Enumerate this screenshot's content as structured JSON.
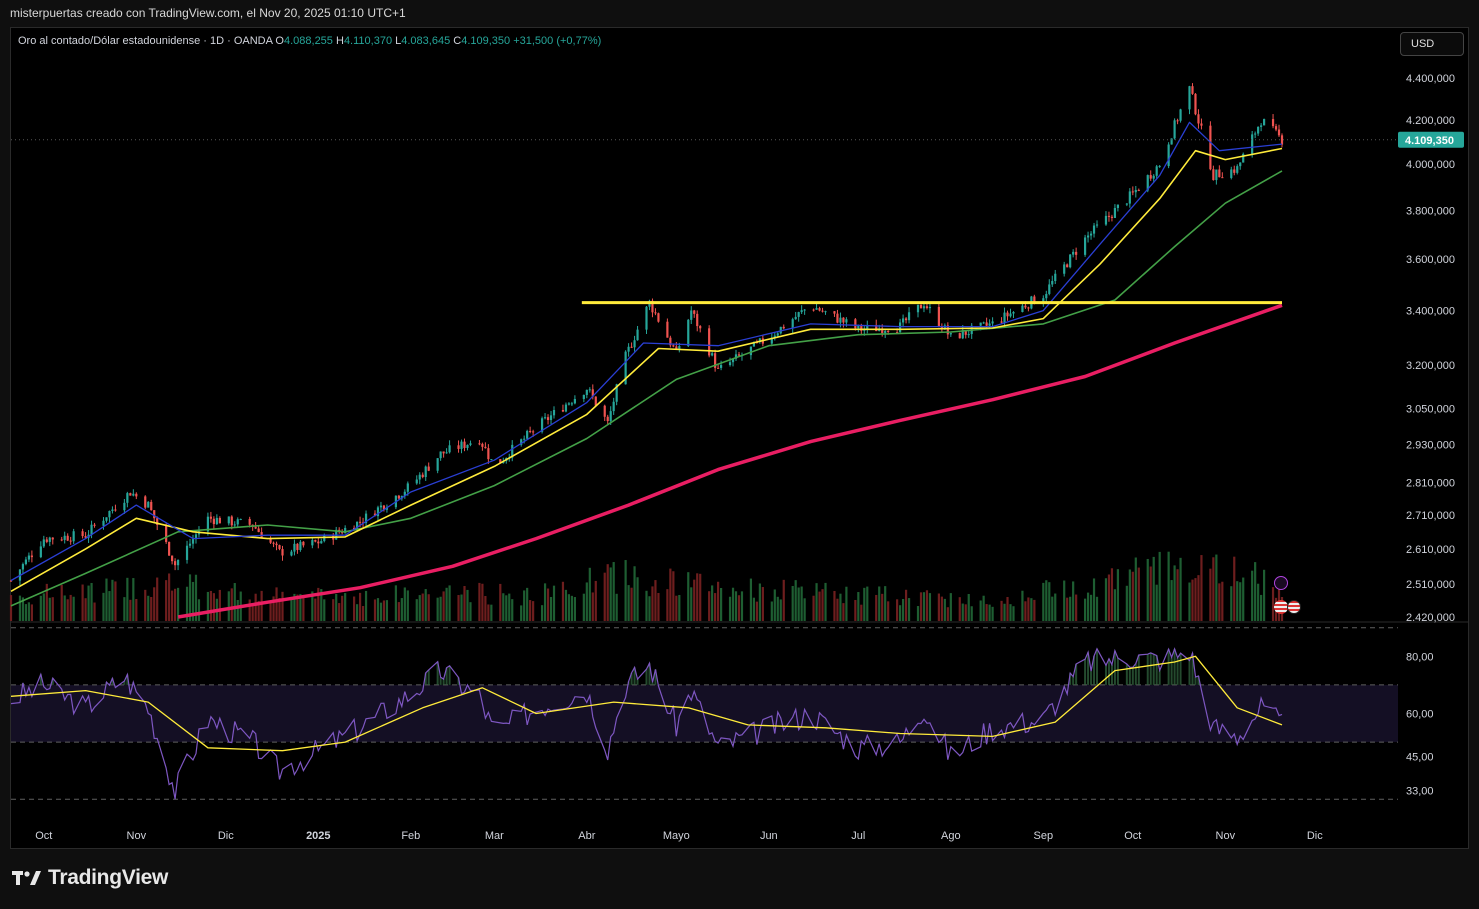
{
  "header": {
    "attribution": "misterpuertas creado con TradingView.com, el Nov 20, 2025 01:10 UTC+1"
  },
  "legend": {
    "symbol": "Oro al contado/Dólar estadounidense · 1D · OANDA",
    "open_label": "O",
    "open": "4.088,255",
    "high_label": "H",
    "high": "4.110,370",
    "low_label": "L",
    "low": "4.083,645",
    "close_label": "C",
    "close": "4.109,350",
    "change": "+31,500 (+0,77%)"
  },
  "currency_button": "USD",
  "brand": {
    "name": "TradingView"
  },
  "colors": {
    "up": "#26a69a",
    "down": "#ef5350",
    "ema_fast": "#2a3fd4",
    "ema_mid": "#ffeb3b",
    "ema_slow": "#43a047",
    "ema_long": "#e91e63",
    "horizontal_level": "#ffeb3b",
    "rsi_line": "#7e57c2",
    "rsi_ma": "#ffeb3b"
  },
  "chart_data": {
    "type": "line",
    "title": "",
    "scale": "log",
    "price_axis_ticks": [
      "4.400,000",
      "4.200,000",
      "4.000,000",
      "3.800,000",
      "3.600,000",
      "3.400,000",
      "3.200,000",
      "3.050,000",
      "2.930,000",
      "2.810,000",
      "2.710,000",
      "2.610,000",
      "2.510,000",
      "2.420,000"
    ],
    "price_axis_values": [
      4400,
      4200,
      4000,
      3800,
      3600,
      3400,
      3200,
      3050,
      2930,
      2810,
      2710,
      2610,
      2510,
      2420
    ],
    "last_price_label": "4.109,350",
    "last_price": 4109.35,
    "ylim": [
      2420,
      4460
    ],
    "horizontal_level": {
      "value": 3430,
      "from": "2025-04-01",
      "to": "2025-11-20"
    },
    "x_ticks": [
      "Oct",
      "Nov",
      "Dic",
      "2025",
      "Feb",
      "Mar",
      "Abr",
      "Mayo",
      "Jun",
      "Jul",
      "Ago",
      "Sep",
      "Oct",
      "Nov",
      "Dic"
    ],
    "x_tick_dates": [
      "2024-10-01",
      "2024-11-01",
      "2024-12-01",
      "2025-01-01",
      "2025-02-01",
      "2025-03-01",
      "2025-04-01",
      "2025-05-01",
      "2025-06-01",
      "2025-07-01",
      "2025-08-01",
      "2025-09-01",
      "2025-10-01",
      "2025-11-01",
      "2025-12-01"
    ],
    "date_range": [
      "2024-09-20",
      "2025-11-20"
    ],
    "price_path": [
      [
        "2024-09-20",
        2520
      ],
      [
        "2024-10-01",
        2640
      ],
      [
        "2024-10-15",
        2650
      ],
      [
        "2024-10-30",
        2780
      ],
      [
        "2024-11-05",
        2740
      ],
      [
        "2024-11-14",
        2565
      ],
      [
        "2024-11-25",
        2700
      ],
      [
        "2024-12-10",
        2680
      ],
      [
        "2024-12-19",
        2600
      ],
      [
        "2025-01-01",
        2630
      ],
      [
        "2025-01-15",
        2690
      ],
      [
        "2025-02-01",
        2800
      ],
      [
        "2025-02-11",
        2900
      ],
      [
        "2025-02-24",
        2950
      ],
      [
        "2025-03-01",
        2860
      ],
      [
        "2025-03-15",
        2985
      ],
      [
        "2025-04-01",
        3120
      ],
      [
        "2025-04-08",
        3000
      ],
      [
        "2025-04-14",
        3230
      ],
      [
        "2025-04-22",
        3430
      ],
      [
        "2025-05-01",
        3240
      ],
      [
        "2025-05-06",
        3400
      ],
      [
        "2025-05-15",
        3180
      ],
      [
        "2025-06-01",
        3300
      ],
      [
        "2025-06-15",
        3420
      ],
      [
        "2025-07-01",
        3330
      ],
      [
        "2025-07-15",
        3340
      ],
      [
        "2025-07-23",
        3430
      ],
      [
        "2025-08-01",
        3300
      ],
      [
        "2025-08-15",
        3350
      ],
      [
        "2025-09-01",
        3460
      ],
      [
        "2025-09-15",
        3680
      ],
      [
        "2025-10-01",
        3870
      ],
      [
        "2025-10-10",
        4000
      ],
      [
        "2025-10-20",
        4350
      ],
      [
        "2025-10-28",
        3950
      ],
      [
        "2025-11-05",
        3980
      ],
      [
        "2025-11-13",
        4200
      ],
      [
        "2025-11-20",
        4109
      ]
    ],
    "ema_fast_path": [
      [
        "2024-09-20",
        2520
      ],
      [
        "2024-10-15",
        2640
      ],
      [
        "2024-11-01",
        2740
      ],
      [
        "2024-11-20",
        2640
      ],
      [
        "2024-12-15",
        2650
      ],
      [
        "2025-01-10",
        2650
      ],
      [
        "2025-02-01",
        2780
      ],
      [
        "2025-03-01",
        2880
      ],
      [
        "2025-04-01",
        3070
      ],
      [
        "2025-04-20",
        3280
      ],
      [
        "2025-05-15",
        3270
      ],
      [
        "2025-06-15",
        3350
      ],
      [
        "2025-07-15",
        3340
      ],
      [
        "2025-08-15",
        3340
      ],
      [
        "2025-09-01",
        3400
      ],
      [
        "2025-09-20",
        3660
      ],
      [
        "2025-10-10",
        3950
      ],
      [
        "2025-10-20",
        4190
      ],
      [
        "2025-10-30",
        4060
      ],
      [
        "2025-11-20",
        4090
      ]
    ],
    "ema_mid_path": [
      [
        "2024-09-20",
        2490
      ],
      [
        "2024-10-15",
        2610
      ],
      [
        "2024-11-01",
        2700
      ],
      [
        "2024-11-20",
        2660
      ],
      [
        "2024-12-15",
        2640
      ],
      [
        "2025-01-10",
        2645
      ],
      [
        "2025-02-01",
        2740
      ],
      [
        "2025-03-01",
        2860
      ],
      [
        "2025-04-01",
        3030
      ],
      [
        "2025-04-25",
        3260
      ],
      [
        "2025-05-15",
        3250
      ],
      [
        "2025-06-15",
        3330
      ],
      [
        "2025-07-15",
        3330
      ],
      [
        "2025-08-15",
        3335
      ],
      [
        "2025-09-01",
        3370
      ],
      [
        "2025-09-20",
        3580
      ],
      [
        "2025-10-10",
        3850
      ],
      [
        "2025-10-22",
        4060
      ],
      [
        "2025-11-01",
        4020
      ],
      [
        "2025-11-20",
        4070
      ]
    ],
    "ema_slow_path": [
      [
        "2024-09-20",
        2450
      ],
      [
        "2024-10-15",
        2540
      ],
      [
        "2024-11-15",
        2660
      ],
      [
        "2024-12-15",
        2680
      ],
      [
        "2025-01-10",
        2660
      ],
      [
        "2025-02-01",
        2700
      ],
      [
        "2025-03-01",
        2800
      ],
      [
        "2025-04-01",
        2950
      ],
      [
        "2025-05-01",
        3150
      ],
      [
        "2025-06-01",
        3270
      ],
      [
        "2025-07-01",
        3310
      ],
      [
        "2025-08-01",
        3320
      ],
      [
        "2025-09-01",
        3350
      ],
      [
        "2025-09-25",
        3440
      ],
      [
        "2025-10-15",
        3650
      ],
      [
        "2025-11-01",
        3830
      ],
      [
        "2025-11-20",
        3970
      ]
    ],
    "ema_long_path": [
      [
        "2024-11-15",
        2420
      ],
      [
        "2024-12-15",
        2460
      ],
      [
        "2025-01-15",
        2500
      ],
      [
        "2025-02-15",
        2560
      ],
      [
        "2025-03-15",
        2640
      ],
      [
        "2025-04-15",
        2740
      ],
      [
        "2025-05-15",
        2850
      ],
      [
        "2025-06-15",
        2940
      ],
      [
        "2025-07-15",
        3010
      ],
      [
        "2025-08-15",
        3080
      ],
      [
        "2025-09-15",
        3160
      ],
      [
        "2025-10-15",
        3280
      ],
      [
        "2025-11-20",
        3420
      ]
    ],
    "volume": {
      "relative_path": [
        [
          "2024-09-20",
          0.3
        ],
        [
          "2024-10-15",
          0.35
        ],
        [
          "2024-11-10",
          0.45
        ],
        [
          "2024-12-15",
          0.3
        ],
        [
          "2025-01-15",
          0.3
        ],
        [
          "2025-02-15",
          0.35
        ],
        [
          "2025-03-15",
          0.3
        ],
        [
          "2025-04-10",
          0.55
        ],
        [
          "2025-05-15",
          0.4
        ],
        [
          "2025-06-15",
          0.35
        ],
        [
          "2025-07-15",
          0.3
        ],
        [
          "2025-08-15",
          0.25
        ],
        [
          "2025-09-15",
          0.45
        ],
        [
          "2025-10-20",
          0.7
        ],
        [
          "2025-11-20",
          0.45
        ]
      ]
    },
    "rsi": {
      "axis_ticks": [
        "80,00",
        "60,00",
        "45,00",
        "33,00"
      ],
      "axis_values": [
        80,
        60,
        45,
        33
      ],
      "band_upper": 70,
      "band_lower": 50,
      "outer_upper": 90,
      "outer_lower": 30,
      "ylim": [
        28,
        92
      ],
      "rsi_path": [
        [
          "2024-09-20",
          65
        ],
        [
          "2024-10-01",
          70
        ],
        [
          "2024-10-15",
          62
        ],
        [
          "2024-10-28",
          73
        ],
        [
          "2024-11-05",
          62
        ],
        [
          "2024-11-14",
          33
        ],
        [
          "2024-11-25",
          58
        ],
        [
          "2024-12-10",
          50
        ],
        [
          "2024-12-19",
          40
        ],
        [
          "2025-01-01",
          47
        ],
        [
          "2025-01-15",
          55
        ],
        [
          "2025-02-01",
          67
        ],
        [
          "2025-02-11",
          75
        ],
        [
          "2025-02-24",
          66
        ],
        [
          "2025-03-01",
          53
        ],
        [
          "2025-03-15",
          62
        ],
        [
          "2025-04-01",
          68
        ],
        [
          "2025-04-08",
          48
        ],
        [
          "2025-04-14",
          70
        ],
        [
          "2025-04-22",
          77
        ],
        [
          "2025-05-01",
          56
        ],
        [
          "2025-05-06",
          68
        ],
        [
          "2025-05-15",
          48
        ],
        [
          "2025-06-01",
          55
        ],
        [
          "2025-06-15",
          60
        ],
        [
          "2025-07-01",
          48
        ],
        [
          "2025-07-15",
          50
        ],
        [
          "2025-07-23",
          62
        ],
        [
          "2025-08-01",
          45
        ],
        [
          "2025-08-15",
          55
        ],
        [
          "2025-09-01",
          58
        ],
        [
          "2025-09-15",
          78
        ],
        [
          "2025-10-01",
          80
        ],
        [
          "2025-10-10",
          79
        ],
        [
          "2025-10-20",
          82
        ],
        [
          "2025-10-28",
          55
        ],
        [
          "2025-11-05",
          52
        ],
        [
          "2025-11-13",
          62
        ],
        [
          "2025-11-20",
          56
        ]
      ],
      "ma_path": [
        [
          "2024-09-20",
          66
        ],
        [
          "2024-10-15",
          68
        ],
        [
          "2024-11-05",
          64
        ],
        [
          "2024-11-25",
          48
        ],
        [
          "2024-12-20",
          47
        ],
        [
          "2025-01-10",
          50
        ],
        [
          "2025-02-05",
          62
        ],
        [
          "2025-02-25",
          69
        ],
        [
          "2025-03-15",
          60
        ],
        [
          "2025-04-10",
          64
        ],
        [
          "2025-05-05",
          62
        ],
        [
          "2025-05-25",
          56
        ],
        [
          "2025-06-20",
          55
        ],
        [
          "2025-07-15",
          53
        ],
        [
          "2025-08-15",
          52
        ],
        [
          "2025-09-05",
          57
        ],
        [
          "2025-09-25",
          75
        ],
        [
          "2025-10-15",
          78
        ],
        [
          "2025-10-22",
          80
        ],
        [
          "2025-11-05",
          62
        ],
        [
          "2025-11-20",
          56
        ]
      ]
    }
  }
}
